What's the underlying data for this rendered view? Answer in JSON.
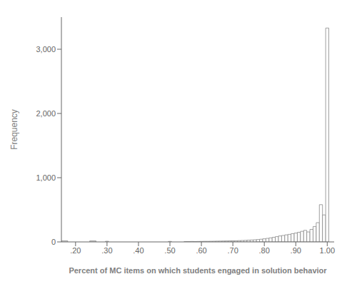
{
  "chart_data": {
    "type": "histogram",
    "xlabel": "Percent of MC items on which students engaged in solution behavior",
    "ylabel": "Frequency",
    "xlim": [
      0.155,
      1.022
    ],
    "ylim": [
      0,
      3500
    ],
    "xticks": [
      {
        "value": 0.2,
        "label": ".20"
      },
      {
        "value": 0.3,
        "label": ".30"
      },
      {
        "value": 0.4,
        "label": ".40"
      },
      {
        "value": 0.5,
        "label": ".50"
      },
      {
        "value": 0.6,
        "label": ".60"
      },
      {
        "value": 0.7,
        "label": ".70"
      },
      {
        "value": 0.8,
        "label": ".80"
      },
      {
        "value": 0.9,
        "label": ".90"
      },
      {
        "value": 1.0,
        "label": "1.00"
      }
    ],
    "yticks": [
      0,
      {
        "value": 1000,
        "label": "1,000"
      },
      {
        "value": 2000,
        "label": "2,000"
      },
      {
        "value": 3000,
        "label": "3,000"
      }
    ],
    "color": "#ffffff",
    "grid": false,
    "x": [
      0.165,
      0.255,
      0.3,
      0.5,
      0.55,
      0.56,
      0.57,
      0.58,
      0.59,
      0.6,
      0.61,
      0.62,
      0.63,
      0.64,
      0.65,
      0.66,
      0.67,
      0.68,
      0.69,
      0.7,
      0.71,
      0.72,
      0.73,
      0.74,
      0.75,
      0.76,
      0.77,
      0.78,
      0.79,
      0.8,
      0.81,
      0.82,
      0.83,
      0.84,
      0.85,
      0.86,
      0.87,
      0.88,
      0.89,
      0.9,
      0.91,
      0.92,
      0.93,
      0.94,
      0.95,
      0.96,
      0.97,
      0.98,
      0.99,
      1.0
    ],
    "widths": [
      0.02,
      0.02,
      0.01,
      0.01,
      0.01,
      0.01,
      0.01,
      0.01,
      0.01,
      0.01,
      0.01,
      0.01,
      0.01,
      0.01,
      0.01,
      0.01,
      0.01,
      0.01,
      0.01,
      0.01,
      0.01,
      0.01,
      0.01,
      0.01,
      0.01,
      0.01,
      0.01,
      0.01,
      0.01,
      0.01,
      0.01,
      0.01,
      0.01,
      0.01,
      0.01,
      0.01,
      0.01,
      0.01,
      0.01,
      0.01,
      0.01,
      0.01,
      0.01,
      0.01,
      0.01,
      0.01,
      0.01,
      0.01,
      0.01,
      0.01
    ],
    "values": [
      18,
      16,
      10,
      8,
      5,
      6,
      7,
      6,
      7,
      8,
      9,
      9,
      10,
      11,
      12,
      13,
      14,
      15,
      16,
      17,
      18,
      20,
      22,
      24,
      27,
      30,
      33,
      37,
      42,
      48,
      55,
      63,
      72,
      82,
      93,
      100,
      110,
      118,
      128,
      138,
      150,
      165,
      180,
      155,
      195,
      240,
      300,
      580,
      420,
      3330
    ]
  }
}
